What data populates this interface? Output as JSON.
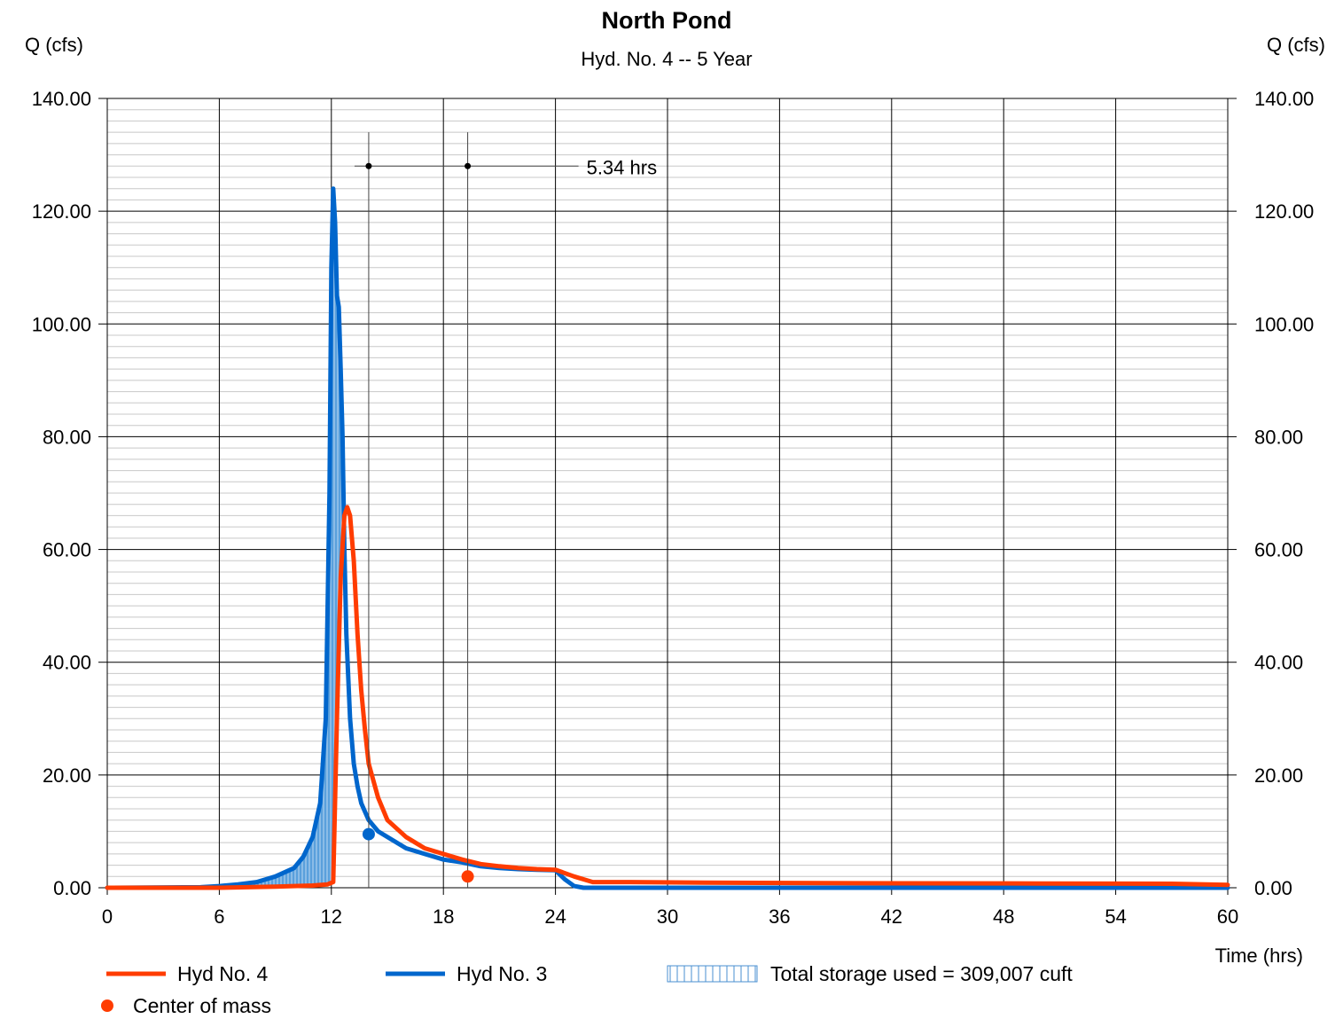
{
  "chart_data": {
    "type": "line",
    "title": "North Pond",
    "subtitle": "Hyd. No. 4 -- 5 Year",
    "ylabel_left": "Q (cfs)",
    "ylabel_right": "Q (cfs)",
    "xlabel": "Time (hrs)",
    "xlim": [
      0,
      60
    ],
    "ylim": [
      0,
      140
    ],
    "x_ticks": [
      0,
      6,
      12,
      18,
      24,
      30,
      36,
      42,
      48,
      54,
      60
    ],
    "x_tick_labels": [
      "0",
      "6",
      "12",
      "18",
      "24",
      "30",
      "36",
      "42",
      "48",
      "54",
      "60"
    ],
    "y_ticks": [
      0,
      20,
      40,
      60,
      80,
      100,
      120,
      140
    ],
    "y_tick_labels": [
      "0.00",
      "20.00",
      "40.00",
      "60.00",
      "80.00",
      "100.00",
      "120.00",
      "140.00"
    ],
    "grid": true,
    "series": [
      {
        "name": "Hyd No. 4",
        "color": "#ff3c00",
        "x": [
          0,
          6,
          9,
          11,
          11.8,
          12.1,
          12.3,
          12.5,
          12.7,
          12.85,
          13.0,
          13.2,
          13.4,
          13.6,
          13.8,
          14.0,
          14.5,
          15.0,
          16.0,
          17.0,
          18.0,
          19.0,
          20.0,
          21.0,
          22.0,
          23.0,
          24.0,
          25.0,
          26.0,
          28.0,
          32.0,
          40.0,
          50.0,
          57.0,
          60.0
        ],
        "y": [
          0,
          0,
          0.2,
          0.4,
          0.6,
          1.0,
          30,
          55,
          66,
          67.5,
          66,
          58,
          45,
          35,
          28,
          22,
          16,
          12,
          9,
          7,
          6,
          5,
          4.2,
          3.8,
          3.5,
          3.3,
          3.2,
          2.0,
          1.0,
          1.0,
          0.9,
          0.8,
          0.75,
          0.7,
          0.5
        ]
      },
      {
        "name": "Hyd No. 3",
        "color": "#0066cc",
        "x": [
          0,
          5,
          6,
          7,
          8,
          9,
          10,
          10.5,
          11.0,
          11.4,
          11.7,
          11.9,
          12.0,
          12.1,
          12.2,
          12.3,
          12.4,
          12.5,
          12.6,
          12.7,
          12.8,
          13.0,
          13.2,
          13.4,
          13.6,
          14.0,
          14.5,
          15.0,
          16.0,
          17.0,
          18.0,
          19.0,
          20.0,
          21.0,
          22.0,
          23.0,
          24.0,
          24.5,
          25.0,
          25.5,
          26.0,
          30.0,
          40.0,
          50.0,
          60.0
        ],
        "y": [
          0,
          0.1,
          0.3,
          0.6,
          1.0,
          2.0,
          3.5,
          5.5,
          9.0,
          15.0,
          30.0,
          70.0,
          110.0,
          124.0,
          118.0,
          105.0,
          103.0,
          92.0,
          80.0,
          60.0,
          45.0,
          30.0,
          22.0,
          18.0,
          15.0,
          12.0,
          10.0,
          9.0,
          7.0,
          6.0,
          5.0,
          4.5,
          3.8,
          3.5,
          3.3,
          3.2,
          3.1,
          1.5,
          0.3,
          0.0,
          0.0,
          0.0,
          0.0,
          0.0,
          0.0
        ]
      }
    ],
    "center_of_mass": [
      {
        "x": 14.0,
        "y": 9.5,
        "color": "#0066cc"
      },
      {
        "x": 19.3,
        "y": 2.0,
        "color": "#ff3c00"
      }
    ],
    "storage_fill_x_range": [
      5,
      12.7
    ],
    "time_difference": {
      "x1": 14.0,
      "x2": 19.3,
      "y": 128,
      "label": "5.34 hrs"
    },
    "legend": {
      "placement": "bottom",
      "items": [
        {
          "name": "Hyd No. 4",
          "color": "#ff3c00"
        },
        {
          "name": "Hyd No. 3",
          "color": "#0066cc"
        },
        {
          "name": "Total storage used = 309,007 cuft",
          "color": "#0066cc"
        },
        {
          "name": "Center of mass",
          "color": "#ff3c00"
        }
      ]
    }
  }
}
